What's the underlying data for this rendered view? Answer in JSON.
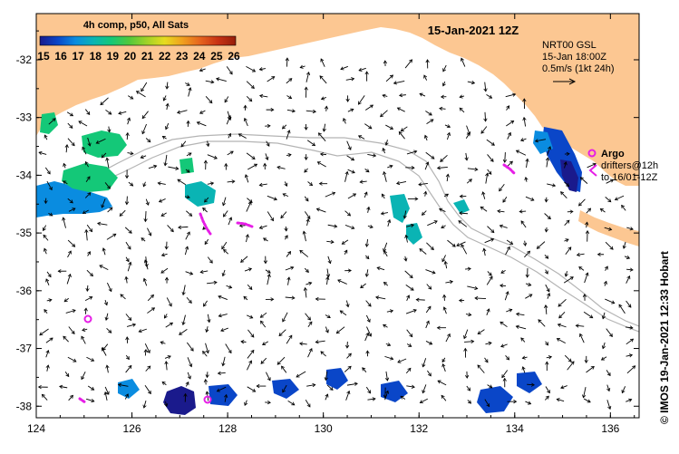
{
  "map": {
    "title": "15-Jan-2021 12Z",
    "colorbar": {
      "title": "4h comp, p50, All Sats",
      "ticks": [
        "15",
        "16",
        "17",
        "18",
        "19",
        "20",
        "21",
        "22",
        "23",
        "24",
        "25",
        "26"
      ],
      "colors": [
        "#1a1a8c",
        "#0a46c8",
        "#0a8ce0",
        "#0ab4b4",
        "#14c878",
        "#50c83c",
        "#a0d228",
        "#e6dc1e",
        "#f0a01e",
        "#e6641e",
        "#c83214",
        "#961e0a"
      ]
    },
    "x_axis": {
      "labels": [
        "124",
        "126",
        "128",
        "130",
        "132",
        "134",
        "136"
      ],
      "values": [
        124,
        126,
        128,
        130,
        132,
        134,
        136
      ],
      "range": [
        124,
        136.6
      ]
    },
    "y_axis": {
      "labels": [
        "-32",
        "-33",
        "-34",
        "-35",
        "-36",
        "-37",
        "-38"
      ],
      "values": [
        -32,
        -33,
        -34,
        -35,
        -36,
        -37,
        -38
      ],
      "range": [
        -38.2,
        -31.2
      ]
    },
    "vector_legend": {
      "line1": "NRT00 GSL",
      "line2": "15-Jan 18:00Z",
      "line3": "0.5m/s (1kt 24h)"
    },
    "argo_legend": {
      "label": "Argo"
    },
    "drifter_legend": {
      "line1": "drifters@12h",
      "line2": "to 16/01-12Z"
    },
    "credit": "© IMOS 19-Jan-2021 12:33 Hobart",
    "colors": {
      "land": "#fcc792",
      "sea": "#ffffff",
      "argo": "#e61ee6",
      "isobath": "#b4b4b4",
      "arrow": "#000000"
    }
  }
}
